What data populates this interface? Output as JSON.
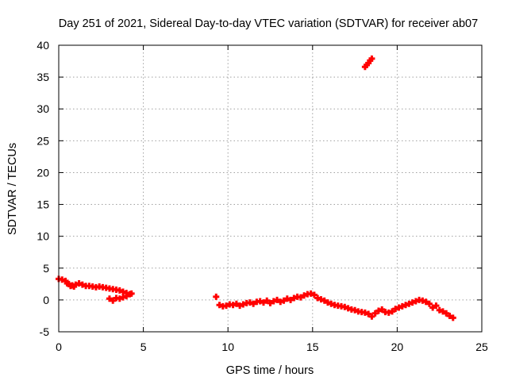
{
  "chart_data": {
    "type": "scatter",
    "title": "Day 251 of 2021, Sidereal Day-to-day VTEC variation (SDTVAR) for receiver ab07",
    "xlabel": "GPS time / hours",
    "ylabel": "SDTVAR / TECUs",
    "xlim": [
      0,
      25
    ],
    "ylim": [
      -5,
      40
    ],
    "xticks": [
      0,
      5,
      10,
      15,
      20,
      25
    ],
    "yticks": [
      -5,
      0,
      5,
      10,
      15,
      20,
      25,
      30,
      35,
      40
    ],
    "grid": true,
    "marker_color": "#ff0000",
    "series": [
      {
        "name": "SDTVAR",
        "x": [
          0.0,
          0.2,
          0.4,
          0.5,
          0.6,
          0.7,
          0.8,
          0.9,
          1.0,
          1.2,
          1.4,
          1.6,
          1.8,
          2.0,
          2.2,
          2.4,
          2.6,
          2.8,
          3.0,
          3.2,
          3.4,
          3.6,
          3.8,
          4.0,
          4.2,
          4.3,
          3.0,
          3.2,
          3.4,
          3.6,
          3.8,
          4.0,
          9.3,
          9.5,
          9.7,
          9.9,
          10.1,
          10.3,
          10.5,
          10.7,
          10.9,
          11.1,
          11.3,
          11.5,
          11.7,
          11.9,
          12.1,
          12.3,
          12.5,
          12.7,
          12.9,
          13.1,
          13.3,
          13.5,
          13.7,
          13.9,
          14.1,
          14.3,
          14.5,
          14.7,
          14.9,
          15.1,
          15.3,
          15.5,
          15.7,
          15.9,
          16.1,
          16.3,
          16.5,
          16.7,
          16.9,
          17.1,
          17.3,
          17.5,
          17.7,
          17.9,
          18.1,
          18.3,
          18.5,
          18.7,
          18.9,
          19.1,
          19.3,
          19.5,
          19.7,
          19.9,
          20.1,
          20.3,
          20.5,
          20.7,
          20.9,
          21.1,
          21.3,
          21.5,
          21.7,
          21.9,
          22.1,
          22.3,
          22.5,
          22.7,
          22.9,
          23.1,
          23.3,
          18.1,
          18.2,
          18.3,
          18.4,
          18.5
        ],
        "y": [
          3.3,
          3.2,
          3.0,
          2.6,
          2.5,
          2.2,
          2.3,
          2.1,
          2.4,
          2.6,
          2.4,
          2.2,
          2.2,
          2.1,
          2.0,
          2.1,
          2.0,
          1.9,
          1.8,
          1.7,
          1.6,
          1.5,
          1.3,
          1.1,
          0.9,
          1.0,
          0.2,
          -0.1,
          0.3,
          0.2,
          0.4,
          0.6,
          0.5,
          -0.8,
          -1.0,
          -0.9,
          -0.7,
          -0.8,
          -0.6,
          -0.9,
          -0.7,
          -0.5,
          -0.4,
          -0.6,
          -0.3,
          -0.2,
          -0.4,
          -0.1,
          -0.5,
          -0.2,
          0.0,
          -0.3,
          -0.1,
          0.2,
          0.0,
          0.3,
          0.5,
          0.4,
          0.7,
          0.9,
          1.0,
          0.8,
          0.3,
          0.1,
          -0.1,
          -0.4,
          -0.6,
          -0.8,
          -0.9,
          -1.0,
          -1.1,
          -1.3,
          -1.5,
          -1.6,
          -1.8,
          -1.9,
          -2.0,
          -2.2,
          -2.6,
          -2.1,
          -1.7,
          -1.5,
          -1.9,
          -2.0,
          -1.8,
          -1.4,
          -1.2,
          -1.0,
          -0.8,
          -0.6,
          -0.4,
          -0.2,
          0.0,
          -0.1,
          -0.3,
          -0.6,
          -1.2,
          -0.9,
          -1.6,
          -1.8,
          -2.1,
          -2.5,
          -2.8,
          36.6,
          36.9,
          37.2,
          37.6,
          37.9
        ]
      }
    ]
  }
}
